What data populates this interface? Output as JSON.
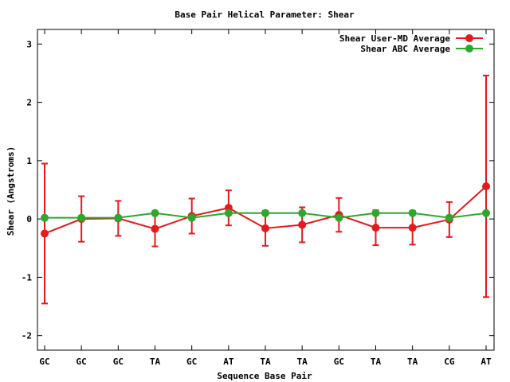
{
  "chart_data": {
    "type": "line",
    "title": "Base Pair Helical Parameter: Shear",
    "xlabel": "Sequence Base Pair",
    "ylabel": "Shear (Angstroms)",
    "categories": [
      "GC",
      "GC",
      "GC",
      "TA",
      "GC",
      "AT",
      "TA",
      "TA",
      "GC",
      "TA",
      "TA",
      "CG",
      "AT"
    ],
    "ylim": [
      -2.25,
      3.25
    ],
    "yticks": [
      -2,
      -1,
      0,
      1,
      2,
      3
    ],
    "legend_position": "top-right",
    "grid": false,
    "series": [
      {
        "name": "Shear User-MD Average",
        "color": "#e41a1c",
        "values": [
          -0.25,
          0.0,
          0.01,
          -0.17,
          0.05,
          0.19,
          -0.16,
          -0.1,
          0.07,
          -0.15,
          -0.15,
          -0.01,
          0.56
        ],
        "errors": [
          1.2,
          0.39,
          0.3,
          0.3,
          0.3,
          0.3,
          0.3,
          0.3,
          0.29,
          0.3,
          0.29,
          0.3,
          1.9
        ]
      },
      {
        "name": "Shear ABC Average",
        "color": "#2ca82c",
        "values": [
          0.02,
          0.02,
          0.02,
          0.1,
          0.02,
          0.1,
          0.1,
          0.1,
          0.02,
          0.1,
          0.1,
          0.02,
          0.1
        ]
      }
    ]
  }
}
